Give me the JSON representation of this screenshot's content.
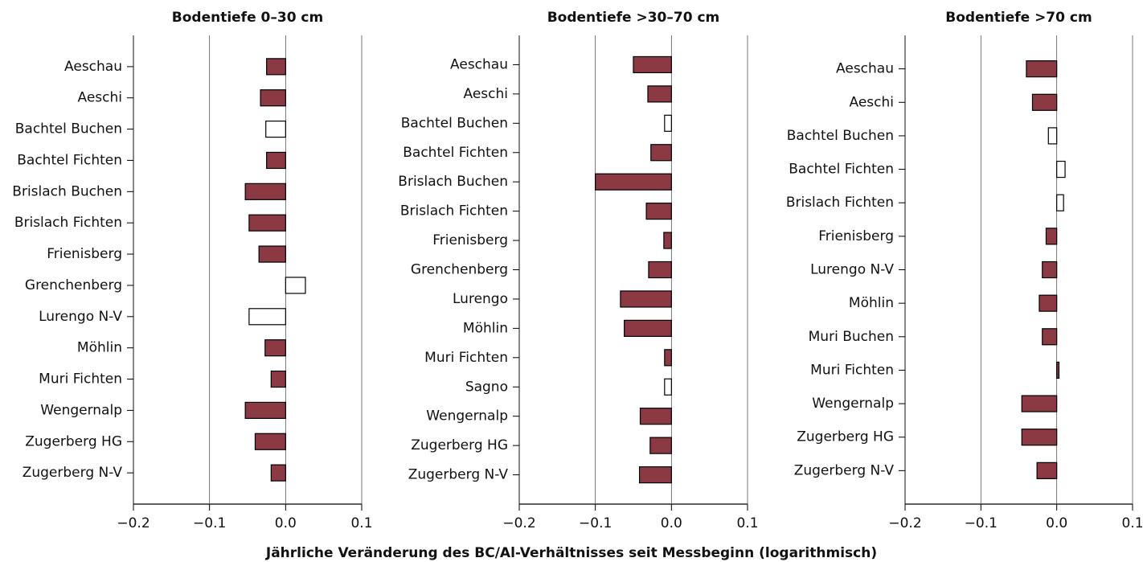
{
  "x_label": "Jährliche Veränderung des BC/Al-Verhältnisses seit Messbeginn (logarithmisch)",
  "chart_data": [
    {
      "type": "barh",
      "title": "Bodentiefe 0–30 cm",
      "categories": [
        "Aeschau",
        "Aeschi",
        "Bachtel Buchen",
        "Bachtel Fichten",
        "Brislach Buchen",
        "Brislach Fichten",
        "Frienisberg",
        "Grenchenberg",
        "Lurengo N-V",
        "Möhlin",
        "Muri Fichten",
        "Wengernalp",
        "Zugerberg HG",
        "Zugerberg N-V"
      ],
      "values": [
        -0.025,
        -0.033,
        -0.026,
        -0.025,
        -0.053,
        -0.048,
        -0.035,
        0.026,
        -0.048,
        -0.027,
        -0.019,
        -0.053,
        -0.04,
        -0.019
      ],
      "colors": [
        "#8b3a44",
        "#8b3a44",
        "#ffffff",
        "#8b3a44",
        "#8b3a44",
        "#8b3a44",
        "#8b3a44",
        "#ffffff",
        "#ffffff",
        "#8b3a44",
        "#8b3a44",
        "#8b3a44",
        "#8b3a44",
        "#8b3a44"
      ],
      "xlim": [
        -0.2,
        0.1
      ],
      "xticks": [
        {
          "value": -0.2,
          "label": "−0.2"
        },
        {
          "value": -0.1,
          "label": "−0.1"
        },
        {
          "value": 0,
          "label": "0.0"
        },
        0.1
      ],
      "grid": true
    },
    {
      "type": "barh",
      "title": "Bodentiefe >30–70 cm",
      "categories": [
        "Aeschau",
        "Aeschi",
        "Bachtel Buchen",
        "Bachtel Fichten",
        "Brislach Buchen",
        "Brislach Fichten",
        "Frienisberg",
        "Grenchenberg",
        "Lurengo",
        "Möhlin",
        "Muri Fichten",
        "Sagno",
        "Wengernalp",
        "Zugerberg HG",
        "Zugerberg N-V"
      ],
      "values": [
        -0.05,
        -0.031,
        -0.009,
        -0.027,
        -0.1,
        -0.033,
        -0.01,
        -0.03,
        -0.067,
        -0.062,
        -0.009,
        -0.009,
        -0.041,
        -0.028,
        -0.042
      ],
      "colors": [
        "#8b3a44",
        "#8b3a44",
        "#ffffff",
        "#8b3a44",
        "#8b3a44",
        "#8b3a44",
        "#8b3a44",
        "#8b3a44",
        "#8b3a44",
        "#8b3a44",
        "#8b3a44",
        "#ffffff",
        "#8b3a44",
        "#8b3a44",
        "#8b3a44"
      ],
      "xlim": [
        -0.2,
        0.1
      ],
      "xticks": [
        {
          "value": -0.2,
          "label": "−0.2"
        },
        {
          "value": -0.1,
          "label": "−0.1"
        },
        {
          "value": 0,
          "label": "0.0"
        },
        0.1
      ],
      "grid": true
    },
    {
      "type": "barh",
      "title": "Bodentiefe >70 cm",
      "categories": [
        "Aeschau",
        "Aeschi",
        "Bachtel Buchen",
        "Bachtel Fichten",
        "Brislach Fichten",
        "Frienisberg",
        "Lurengo N-V",
        "Möhlin",
        "Muri Buchen",
        "Muri Fichten",
        "Wengernalp",
        "Zugerberg HG",
        "Zugerberg N-V"
      ],
      "values": [
        -0.04,
        -0.032,
        -0.011,
        0.011,
        0.009,
        -0.014,
        -0.019,
        -0.023,
        -0.019,
        0.003,
        -0.046,
        -0.046,
        -0.026
      ],
      "colors": [
        "#8b3a44",
        "#8b3a44",
        "#ffffff",
        "#ffffff",
        "#ffffff",
        "#8b3a44",
        "#8b3a44",
        "#8b3a44",
        "#8b3a44",
        "#8b3a44",
        "#8b3a44",
        "#8b3a44",
        "#8b3a44"
      ],
      "xlim": [
        -0.2,
        0.1
      ],
      "xticks": [
        {
          "value": -0.2,
          "label": "−0.2"
        },
        {
          "value": -0.1,
          "label": "−0.1"
        },
        {
          "value": 0,
          "label": "0.0"
        },
        0.1
      ],
      "grid": true
    }
  ]
}
